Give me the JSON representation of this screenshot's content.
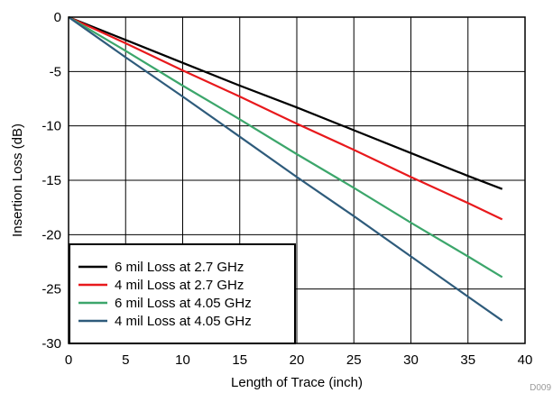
{
  "chart_data": {
    "type": "line",
    "xlabel": "Length of Trace (inch)",
    "ylabel": "Insertion Loss (dB)",
    "xlim": [
      0,
      40
    ],
    "ylim": [
      -30,
      0
    ],
    "xticks": [
      0,
      5,
      10,
      15,
      20,
      25,
      30,
      35,
      40
    ],
    "yticks": [
      0,
      -5,
      -10,
      -15,
      -20,
      -25,
      -30
    ],
    "grid": true,
    "legend_position": "bottom-left",
    "figure_code": "D009",
    "series": [
      {
        "name": "6 mil Loss at 2.7 GHz",
        "color": "#000000",
        "x": [
          0,
          5,
          10,
          15,
          20,
          25,
          30,
          35,
          38
        ],
        "y": [
          0,
          -2.1,
          -4.2,
          -6.3,
          -8.3,
          -10.4,
          -12.5,
          -14.6,
          -15.8
        ]
      },
      {
        "name": "4 mil Loss at 2.7 GHz",
        "color": "#e8191c",
        "x": [
          0,
          5,
          10,
          15,
          20,
          25,
          30,
          35,
          38
        ],
        "y": [
          0,
          -2.4,
          -4.9,
          -7.3,
          -9.8,
          -12.2,
          -14.7,
          -17.1,
          -18.6
        ]
      },
      {
        "name": "6 mil Loss at 4.05 GHz",
        "color": "#3ca66b",
        "x": [
          0,
          5,
          10,
          15,
          20,
          25,
          30,
          35,
          38
        ],
        "y": [
          0,
          -3.1,
          -6.3,
          -9.4,
          -12.6,
          -15.7,
          -18.9,
          -22.0,
          -23.9
        ]
      },
      {
        "name": "4 mil Loss at 4.05 GHz",
        "color": "#2e5b7b",
        "x": [
          0,
          5,
          10,
          15,
          20,
          25,
          30,
          35,
          38
        ],
        "y": [
          0,
          -3.7,
          -7.3,
          -11.0,
          -14.7,
          -18.3,
          -22.0,
          -25.7,
          -27.9
        ]
      }
    ]
  }
}
